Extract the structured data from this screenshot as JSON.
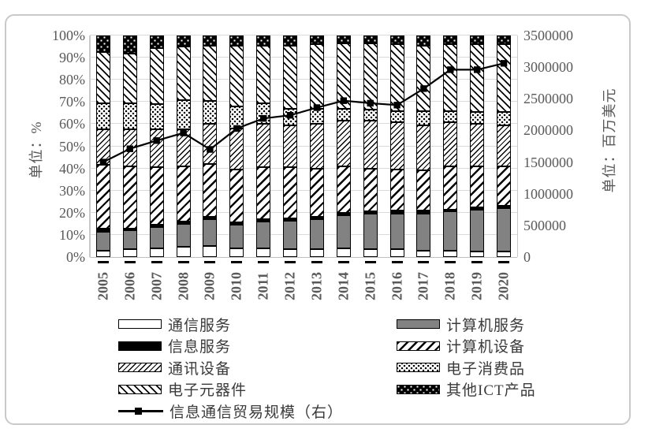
{
  "chart_data": {
    "type": "stacked-bar-100pct-with-line",
    "categories": [
      "2005",
      "2006",
      "2007",
      "2008",
      "2009",
      "2010",
      "2011",
      "2012",
      "2013",
      "2014",
      "2015",
      "2016",
      "2017",
      "2018",
      "2019",
      "2020"
    ],
    "series": [
      {
        "name": "通信服务",
        "key": "comm-services",
        "pattern": "pat-outline",
        "values": [
          3,
          3.5,
          4,
          4.5,
          5,
          4,
          4,
          3.5,
          3.5,
          4,
          3.5,
          3.5,
          3,
          3,
          2.5,
          2.5
        ]
      },
      {
        "name": "计算机服务",
        "key": "computer-services",
        "pattern": "pat-solid-gray",
        "values": [
          8.5,
          8.5,
          9.5,
          10.5,
          12,
          10.5,
          12,
          13,
          13.5,
          15,
          16,
          16,
          16.5,
          17.5,
          19,
          19.5
        ]
      },
      {
        "name": "信息服务",
        "key": "info-services",
        "pattern": "pat-solid-black",
        "values": [
          1.5,
          1,
          1,
          1,
          1,
          1,
          1,
          1,
          1,
          1,
          1,
          1.5,
          1.5,
          1,
          1,
          1
        ]
      },
      {
        "name": "计算机设备",
        "key": "computer-equipment",
        "pattern": "pat-hatch-fwd-coarse",
        "values": [
          28.5,
          28,
          26,
          25,
          24,
          24,
          23.5,
          23,
          22,
          21,
          19.5,
          18.5,
          18,
          19.5,
          18.5,
          18
        ]
      },
      {
        "name": "通讯设备",
        "key": "telecom-equipment",
        "pattern": "pat-hatch-fwd-fine",
        "values": [
          16,
          16.5,
          17,
          16.5,
          18,
          18.5,
          19.5,
          19,
          20,
          20.5,
          21.5,
          21.5,
          20.5,
          20,
          19,
          18.5
        ]
      },
      {
        "name": "电子消费品",
        "key": "consumer-electronics",
        "pattern": "pat-dots-dense",
        "values": [
          12,
          12,
          11.5,
          13.5,
          10.5,
          10,
          9.5,
          7.5,
          7,
          5.5,
          5,
          5,
          6.5,
          5,
          5.5,
          6
        ]
      },
      {
        "name": "电子元器件",
        "key": "electronic-components",
        "pattern": "pat-hatch-back",
        "values": [
          23,
          22.5,
          25.5,
          24,
          25,
          27.5,
          26,
          28.5,
          29,
          29.5,
          30,
          30,
          29.5,
          30,
          30.5,
          30.5
        ]
      },
      {
        "name": "其他ICT产品",
        "key": "other-ict-products",
        "pattern": "pat-dots-on-black",
        "values": [
          7.5,
          8,
          5.5,
          5,
          4.5,
          4.5,
          4.5,
          4.5,
          4,
          3.5,
          3.5,
          4,
          4.5,
          4,
          4,
          4
        ]
      }
    ],
    "line_series": {
      "name": "信息通信贸易规模（右）",
      "key": "ict-trade-scale-line",
      "axis": "right",
      "values": [
        1500000,
        1710000,
        1840000,
        1960000,
        1700000,
        2030000,
        2190000,
        2240000,
        2360000,
        2470000,
        2430000,
        2400000,
        2660000,
        2960000,
        2960000,
        3060000
      ]
    },
    "left_axis": {
      "title": "单位：%",
      "min": 0,
      "max": 100,
      "tick_labels": [
        "0%",
        "10%",
        "20%",
        "30%",
        "40%",
        "50%",
        "60%",
        "70%",
        "80%",
        "90%",
        "100%"
      ]
    },
    "right_axis": {
      "title": "单位：百万美元",
      "min": 0,
      "max": 3500000,
      "tick_labels": [
        "0",
        "500000",
        "1000000",
        "1500000",
        "2000000",
        "2500000",
        "3000000",
        "3500000"
      ]
    },
    "legend": {
      "column1": [
        "通信服务",
        "信息服务",
        "通讯设备",
        "电子元器件",
        "信息通信贸易规模（右）"
      ],
      "column2": [
        "计算机服务",
        "计算机设备",
        "电子消费品",
        "其他ICT产品"
      ]
    },
    "grid": "horizontal",
    "colors": {
      "bar_border": "#000000",
      "gridline": "#d9d9d9",
      "axis_label": "#595959",
      "line": "#000000"
    }
  }
}
